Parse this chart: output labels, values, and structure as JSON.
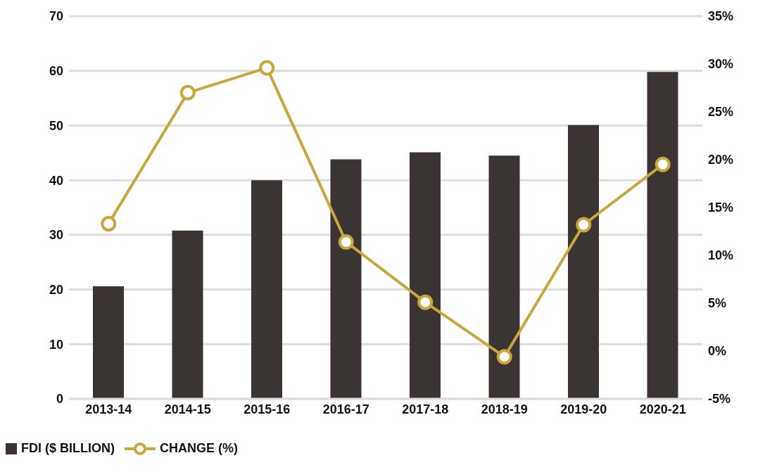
{
  "chart_data": {
    "type": "bar",
    "categories": [
      "2013-14",
      "2014-15",
      "2015-16",
      "2016-17",
      "2017-18",
      "2018-19",
      "2019-20",
      "2020-21"
    ],
    "series": [
      {
        "name": "FDI ($ BILLION)",
        "color": "#3a3533",
        "values": [
          20.6,
          30.8,
          40,
          43.8,
          45.1,
          44.5,
          50.1,
          59.8
        ]
      },
      {
        "name": "CHANGE (%)",
        "type": "line",
        "axis": "y2",
        "color": "#c9a83a",
        "values": [
          13.3,
          27,
          29.6,
          11.4,
          5.1,
          -0.6,
          13.2,
          19.5
        ]
      }
    ],
    "ylim": [
      0,
      70
    ],
    "yticks": [
      0,
      10,
      20,
      30,
      40,
      50,
      60,
      70
    ],
    "y2lim": [
      -5,
      35
    ],
    "y2ticks": [
      {
        "value": -5,
        "label": "-5%"
      },
      {
        "value": 0,
        "label": "0%"
      },
      {
        "value": 5,
        "label": "5%"
      },
      {
        "value": 10,
        "label": "10%"
      },
      {
        "value": 15,
        "label": "15%"
      },
      {
        "value": 20,
        "label": "20%"
      },
      {
        "value": 25,
        "label": "25%"
      },
      {
        "value": 30,
        "label": "30%"
      },
      {
        "value": 35,
        "label": "35%"
      }
    ],
    "grid": "y",
    "legend": "bottom left",
    "marker": "circle",
    "line_style": "solid"
  }
}
